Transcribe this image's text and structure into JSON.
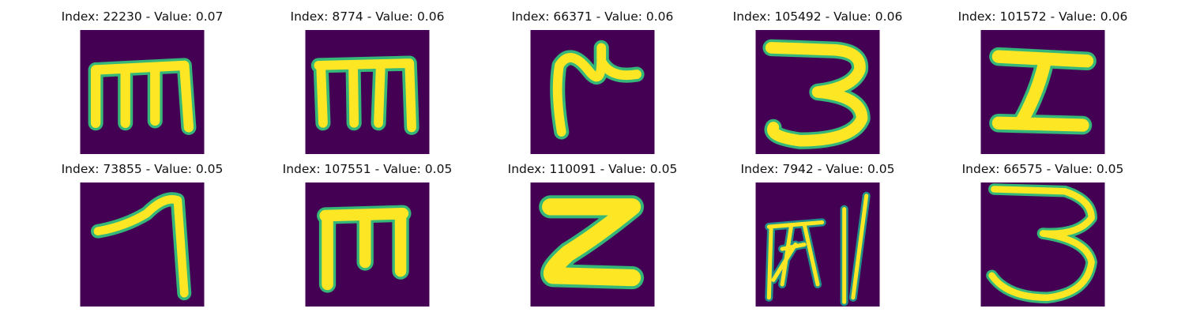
{
  "colors": {
    "background": "#440154",
    "stroke": "#fde725",
    "edge": "#35b779",
    "edge_dark": "#21918c"
  },
  "panels": [
    {
      "title": "Index: 22230 - Value: 0.07",
      "glyph": "m-shape"
    },
    {
      "title": "Index: 8774 - Value: 0.06",
      "glyph": "m-shape"
    },
    {
      "title": "Index: 66371 - Value: 0.06",
      "glyph": "hook-cross-shape"
    },
    {
      "title": "Index: 105492 - Value: 0.06",
      "glyph": "three-shape"
    },
    {
      "title": "Index: 101572 - Value: 0.06",
      "glyph": "sigma-shape"
    },
    {
      "title": "Index: 73855 - Value: 0.05",
      "glyph": "seven-shape"
    },
    {
      "title": "Index: 107551 - Value: 0.05",
      "glyph": "m-shape"
    },
    {
      "title": "Index: 110091 - Value: 0.05",
      "glyph": "z-shape"
    },
    {
      "title": "Index: 7942 - Value: 0.05",
      "glyph": "script-glyph"
    },
    {
      "title": "Index: 66575 - Value: 0.05",
      "glyph": "three-shape"
    }
  ]
}
